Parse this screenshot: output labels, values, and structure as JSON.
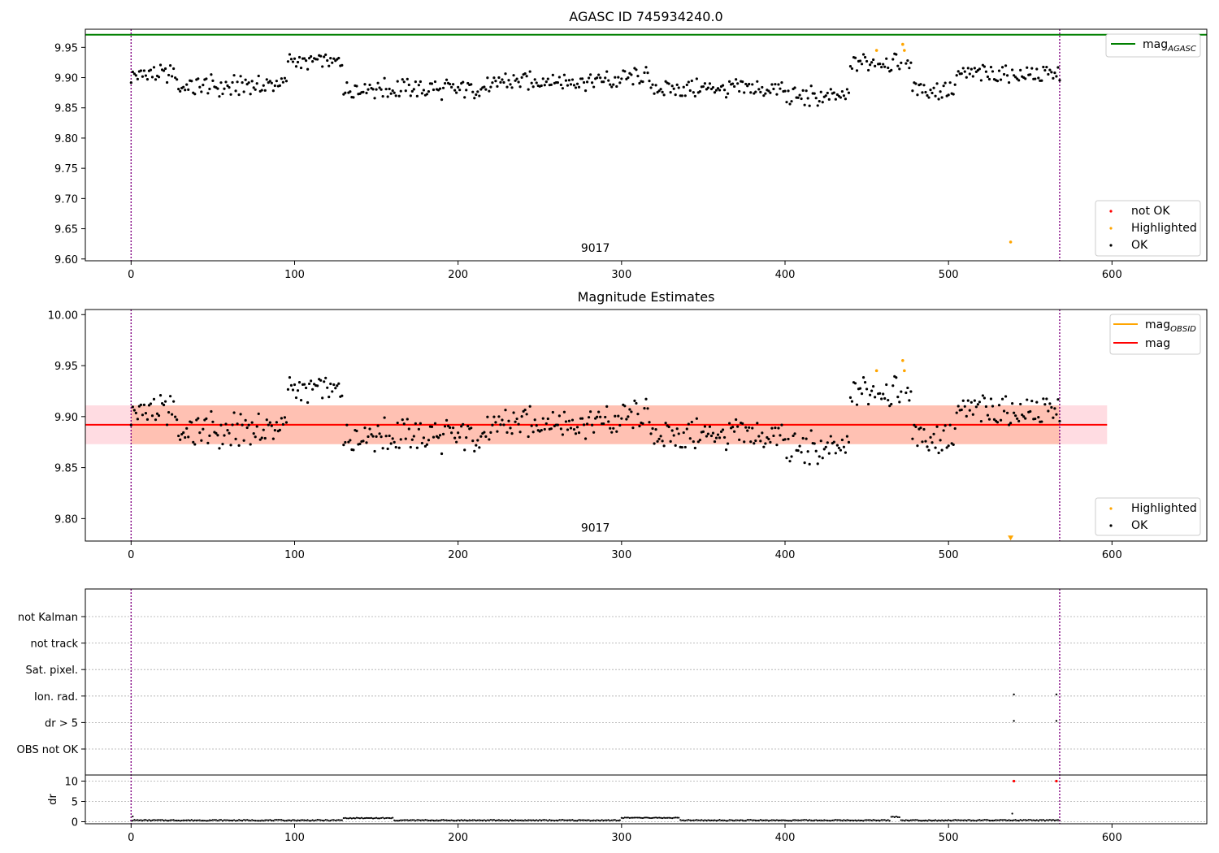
{
  "chart_data": [
    {
      "type": "scatter",
      "title": "AGASC ID 745934240.0",
      "xlim": [
        -28,
        658
      ],
      "ylim": [
        9.597,
        9.98
      ],
      "x_ticks": [
        0,
        100,
        200,
        300,
        400,
        500,
        600
      ],
      "y_ticks": [
        9.6,
        9.65,
        9.7,
        9.75,
        9.8,
        9.85,
        9.9,
        9.95
      ],
      "y_tick_labels": [
        "9.60",
        "9.65",
        "9.70",
        "9.75",
        "9.80",
        "9.85",
        "9.90",
        "9.95"
      ],
      "obs_boundaries": [
        0,
        568
      ],
      "obs_label": {
        "text": "9017",
        "x": 284,
        "y": 9.612
      },
      "hline": {
        "name": "mag_AGASC",
        "value": 9.971,
        "color": "#008000"
      },
      "segments": [
        {
          "x0": 0,
          "x1": 28,
          "base": 9.905,
          "amp": 0.012
        },
        {
          "x0": 28,
          "x1": 70,
          "base": 9.885,
          "amp": 0.014
        },
        {
          "x0": 70,
          "x1": 96,
          "base": 9.888,
          "amp": 0.014
        },
        {
          "x0": 96,
          "x1": 130,
          "base": 9.927,
          "amp": 0.01
        },
        {
          "x0": 130,
          "x1": 225,
          "base": 9.882,
          "amp": 0.013
        },
        {
          "x0": 225,
          "x1": 300,
          "base": 9.895,
          "amp": 0.012
        },
        {
          "x0": 300,
          "x1": 318,
          "base": 9.902,
          "amp": 0.012
        },
        {
          "x0": 318,
          "x1": 400,
          "base": 9.882,
          "amp": 0.012
        },
        {
          "x0": 400,
          "x1": 440,
          "base": 9.868,
          "amp": 0.013
        },
        {
          "x0": 440,
          "x1": 478,
          "base": 9.925,
          "amp": 0.012
        },
        {
          "x0": 478,
          "x1": 505,
          "base": 9.88,
          "amp": 0.014
        },
        {
          "x0": 505,
          "x1": 569,
          "base": 9.905,
          "amp": 0.011
        }
      ],
      "highlighted_points": [
        [
          456,
          9.945
        ],
        [
          472,
          9.955
        ],
        [
          473,
          9.945
        ],
        [
          538,
          9.628
        ]
      ],
      "not_ok_points": [],
      "legend_top": [
        {
          "label": "mag",
          "subscript": "AGASC",
          "color": "#008000",
          "marker": "line"
        }
      ],
      "legend_bottom": [
        {
          "label": "not OK",
          "color": "#ff0000",
          "marker": "dot"
        },
        {
          "label": "Highlighted",
          "color": "#ffa500",
          "marker": "dot"
        },
        {
          "label": "OK",
          "color": "#000000",
          "marker": "dot"
        }
      ]
    },
    {
      "type": "scatter",
      "title": "Magnitude Estimates",
      "xlim": [
        -28,
        658
      ],
      "ylim": [
        9.778,
        10.005
      ],
      "x_ticks": [
        0,
        100,
        200,
        300,
        400,
        500,
        600
      ],
      "y_ticks": [
        9.8,
        9.85,
        9.9,
        9.95,
        10.0
      ],
      "y_tick_labels": [
        "9.80",
        "9.85",
        "9.90",
        "9.95",
        "10.00"
      ],
      "obs_boundaries": [
        0,
        568
      ],
      "obs_label": {
        "text": "9017",
        "x": 284,
        "y": 9.787
      },
      "mag_line": {
        "name": "mag",
        "value": 9.892,
        "color": "#ff0000",
        "band": [
          9.873,
          9.911
        ],
        "band_color": "#ffc0cb",
        "x0": -28,
        "x1": 597
      },
      "mag_obsid": {
        "name": "mag_OBSID",
        "value": 9.892,
        "color": "#ffa500",
        "band": [
          9.873,
          9.911
        ],
        "x0": 0,
        "x1": 568
      },
      "highlighted_points": [
        [
          456,
          9.945
        ],
        [
          472,
          9.955
        ],
        [
          473,
          9.945
        ]
      ],
      "off_scale_marker": {
        "x": 538,
        "y": 9.781,
        "color": "#ffa500"
      },
      "legend_top": [
        {
          "label": "mag",
          "subscript": "OBSID",
          "color": "#ffa500",
          "marker": "line"
        },
        {
          "label": "mag",
          "subscript": "",
          "color": "#ff0000",
          "marker": "line"
        }
      ],
      "legend_bottom": [
        {
          "label": "Highlighted",
          "color": "#ffa500",
          "marker": "dot"
        },
        {
          "label": "OK",
          "color": "#000000",
          "marker": "dot"
        }
      ]
    },
    {
      "type": "scatter",
      "title": "",
      "xlim": [
        -28,
        658
      ],
      "x_ticks": [
        0,
        100,
        200,
        300,
        400,
        500,
        600
      ],
      "flag_labels": [
        "not Kalman",
        "not track",
        "Sat. pixel.",
        "Ion. rad.",
        "dr > 5",
        "OBS not OK"
      ],
      "flag_points": {
        "Ion. rad.": [
          540,
          566
        ],
        "dr > 5": [
          540,
          566
        ]
      },
      "dr_panel": {
        "ylabel": "dr",
        "ylim": [
          -0.5,
          11.5
        ],
        "y_ticks": [
          0,
          5,
          10
        ],
        "y_tick_labels": [
          "0",
          "5",
          "10"
        ],
        "baseline": 0.35,
        "bumps": [
          [
            130,
            160,
            0.9
          ],
          [
            300,
            335,
            0.95
          ],
          [
            465,
            470,
            1.2
          ]
        ],
        "outliers": [
          [
            540,
            10.0
          ],
          [
            566,
            10.0
          ],
          [
            539,
            2.0
          ],
          [
            1,
            1.3
          ]
        ]
      },
      "obs_boundaries": [
        0,
        568
      ]
    }
  ]
}
